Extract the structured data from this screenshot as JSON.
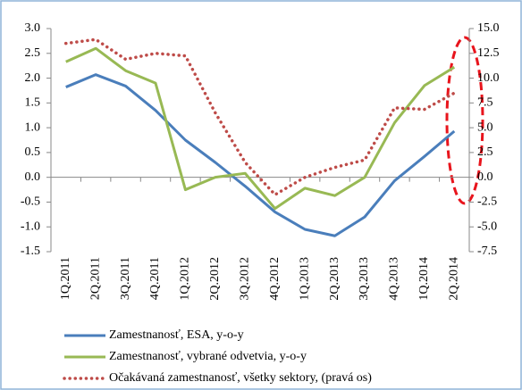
{
  "chart_data": {
    "type": "line",
    "categories": [
      "1Q.2011",
      "2Q.2011",
      "3Q.2011",
      "4Q.2011",
      "1Q.2012",
      "2Q.2012",
      "3Q.2012",
      "4Q.2012",
      "1Q.2013",
      "2Q.2013",
      "3Q.2013",
      "4Q.2013",
      "1Q.2014",
      "2Q.2014"
    ],
    "series": [
      {
        "name": "Zamestnanosť, ESA, y-o-y",
        "color": "#4a7ebb",
        "values": [
          1.82,
          2.07,
          1.84,
          1.35,
          0.75,
          0.3,
          -0.18,
          -0.7,
          -1.05,
          -1.18,
          -0.8,
          -0.07,
          0.42,
          0.93
        ]
      },
      {
        "name": "Zamestnanosť, vybrané odvetvia, y-o-y",
        "color": "#98b954",
        "values": [
          2.33,
          2.6,
          2.15,
          1.9,
          -0.25,
          0.0,
          0.08,
          -0.63,
          -0.22,
          -0.37,
          0.0,
          1.1,
          1.85,
          2.22
        ]
      },
      {
        "name": "Očakávaná zamestnanosť, všetky sektory, (pravá os)",
        "color": "#be4b48",
        "axis": "y2",
        "values": [
          13.5,
          13.9,
          11.9,
          12.5,
          12.25,
          6.5,
          1.5,
          -1.75,
          0.0,
          1.0,
          1.75,
          7.0,
          6.85,
          8.5
        ]
      }
    ],
    "ylim": [
      -1.5,
      3.0
    ],
    "yticks": [
      {
        "value": 3.0,
        "label": "3.0"
      },
      {
        "value": 2.5,
        "label": "2.5"
      },
      {
        "value": 2.0,
        "label": "2.0"
      },
      {
        "value": 1.5,
        "label": "1.5"
      },
      {
        "value": 1.0,
        "label": "1.0"
      },
      {
        "value": 0.5,
        "label": "0.5"
      },
      {
        "value": 0.0,
        "label": "0.0"
      },
      {
        "value": -0.5,
        "label": "-0.5"
      },
      {
        "value": -1.0,
        "label": "-1.0"
      },
      {
        "value": -1.5,
        "label": "-1.5"
      }
    ],
    "y2lim": [
      -7.5,
      15.0
    ],
    "y2ticks": [
      {
        "value": 15.0,
        "label": "15.0"
      },
      {
        "value": 12.5,
        "label": "12.5"
      },
      {
        "value": 10.0,
        "label": "10.0"
      },
      {
        "value": 7.5,
        "label": "7.5"
      },
      {
        "value": 5.0,
        "label": "5.0"
      },
      {
        "value": 2.5,
        "label": "2.5"
      },
      {
        "value": 0.0,
        "label": "0.0"
      },
      {
        "value": -2.5,
        "label": "-2.5"
      },
      {
        "value": -5.0,
        "label": "-5.0"
      },
      {
        "value": -7.5,
        "label": "-7.5"
      }
    ],
    "grid": false
  }
}
